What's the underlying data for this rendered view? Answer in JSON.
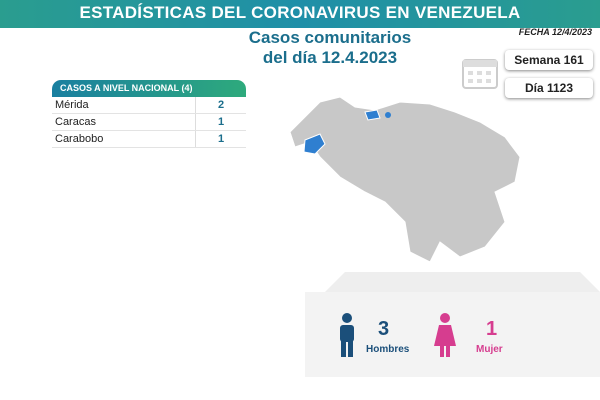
{
  "header": {
    "title": "ESTADÍSTICAS DEL CORONAVIRUS EN VENEZUELA",
    "date": "FECHA 12/4/2023"
  },
  "subtitle": {
    "line1": "Casos comunitarios",
    "line2": "del día 12.4.2023"
  },
  "info": {
    "week": "Semana 161",
    "day": "Día 1123"
  },
  "table": {
    "title": "CASOS A NIVEL NACIONAL",
    "total": "(4)",
    "rows": [
      [
        "Mérida",
        2
      ],
      [
        "Caracas",
        1
      ],
      [
        "Carabobo",
        1
      ]
    ]
  },
  "gender": {
    "men": {
      "count": 3,
      "label": "Hombres"
    },
    "women": {
      "count": 1,
      "label": "Mujer"
    }
  }
}
